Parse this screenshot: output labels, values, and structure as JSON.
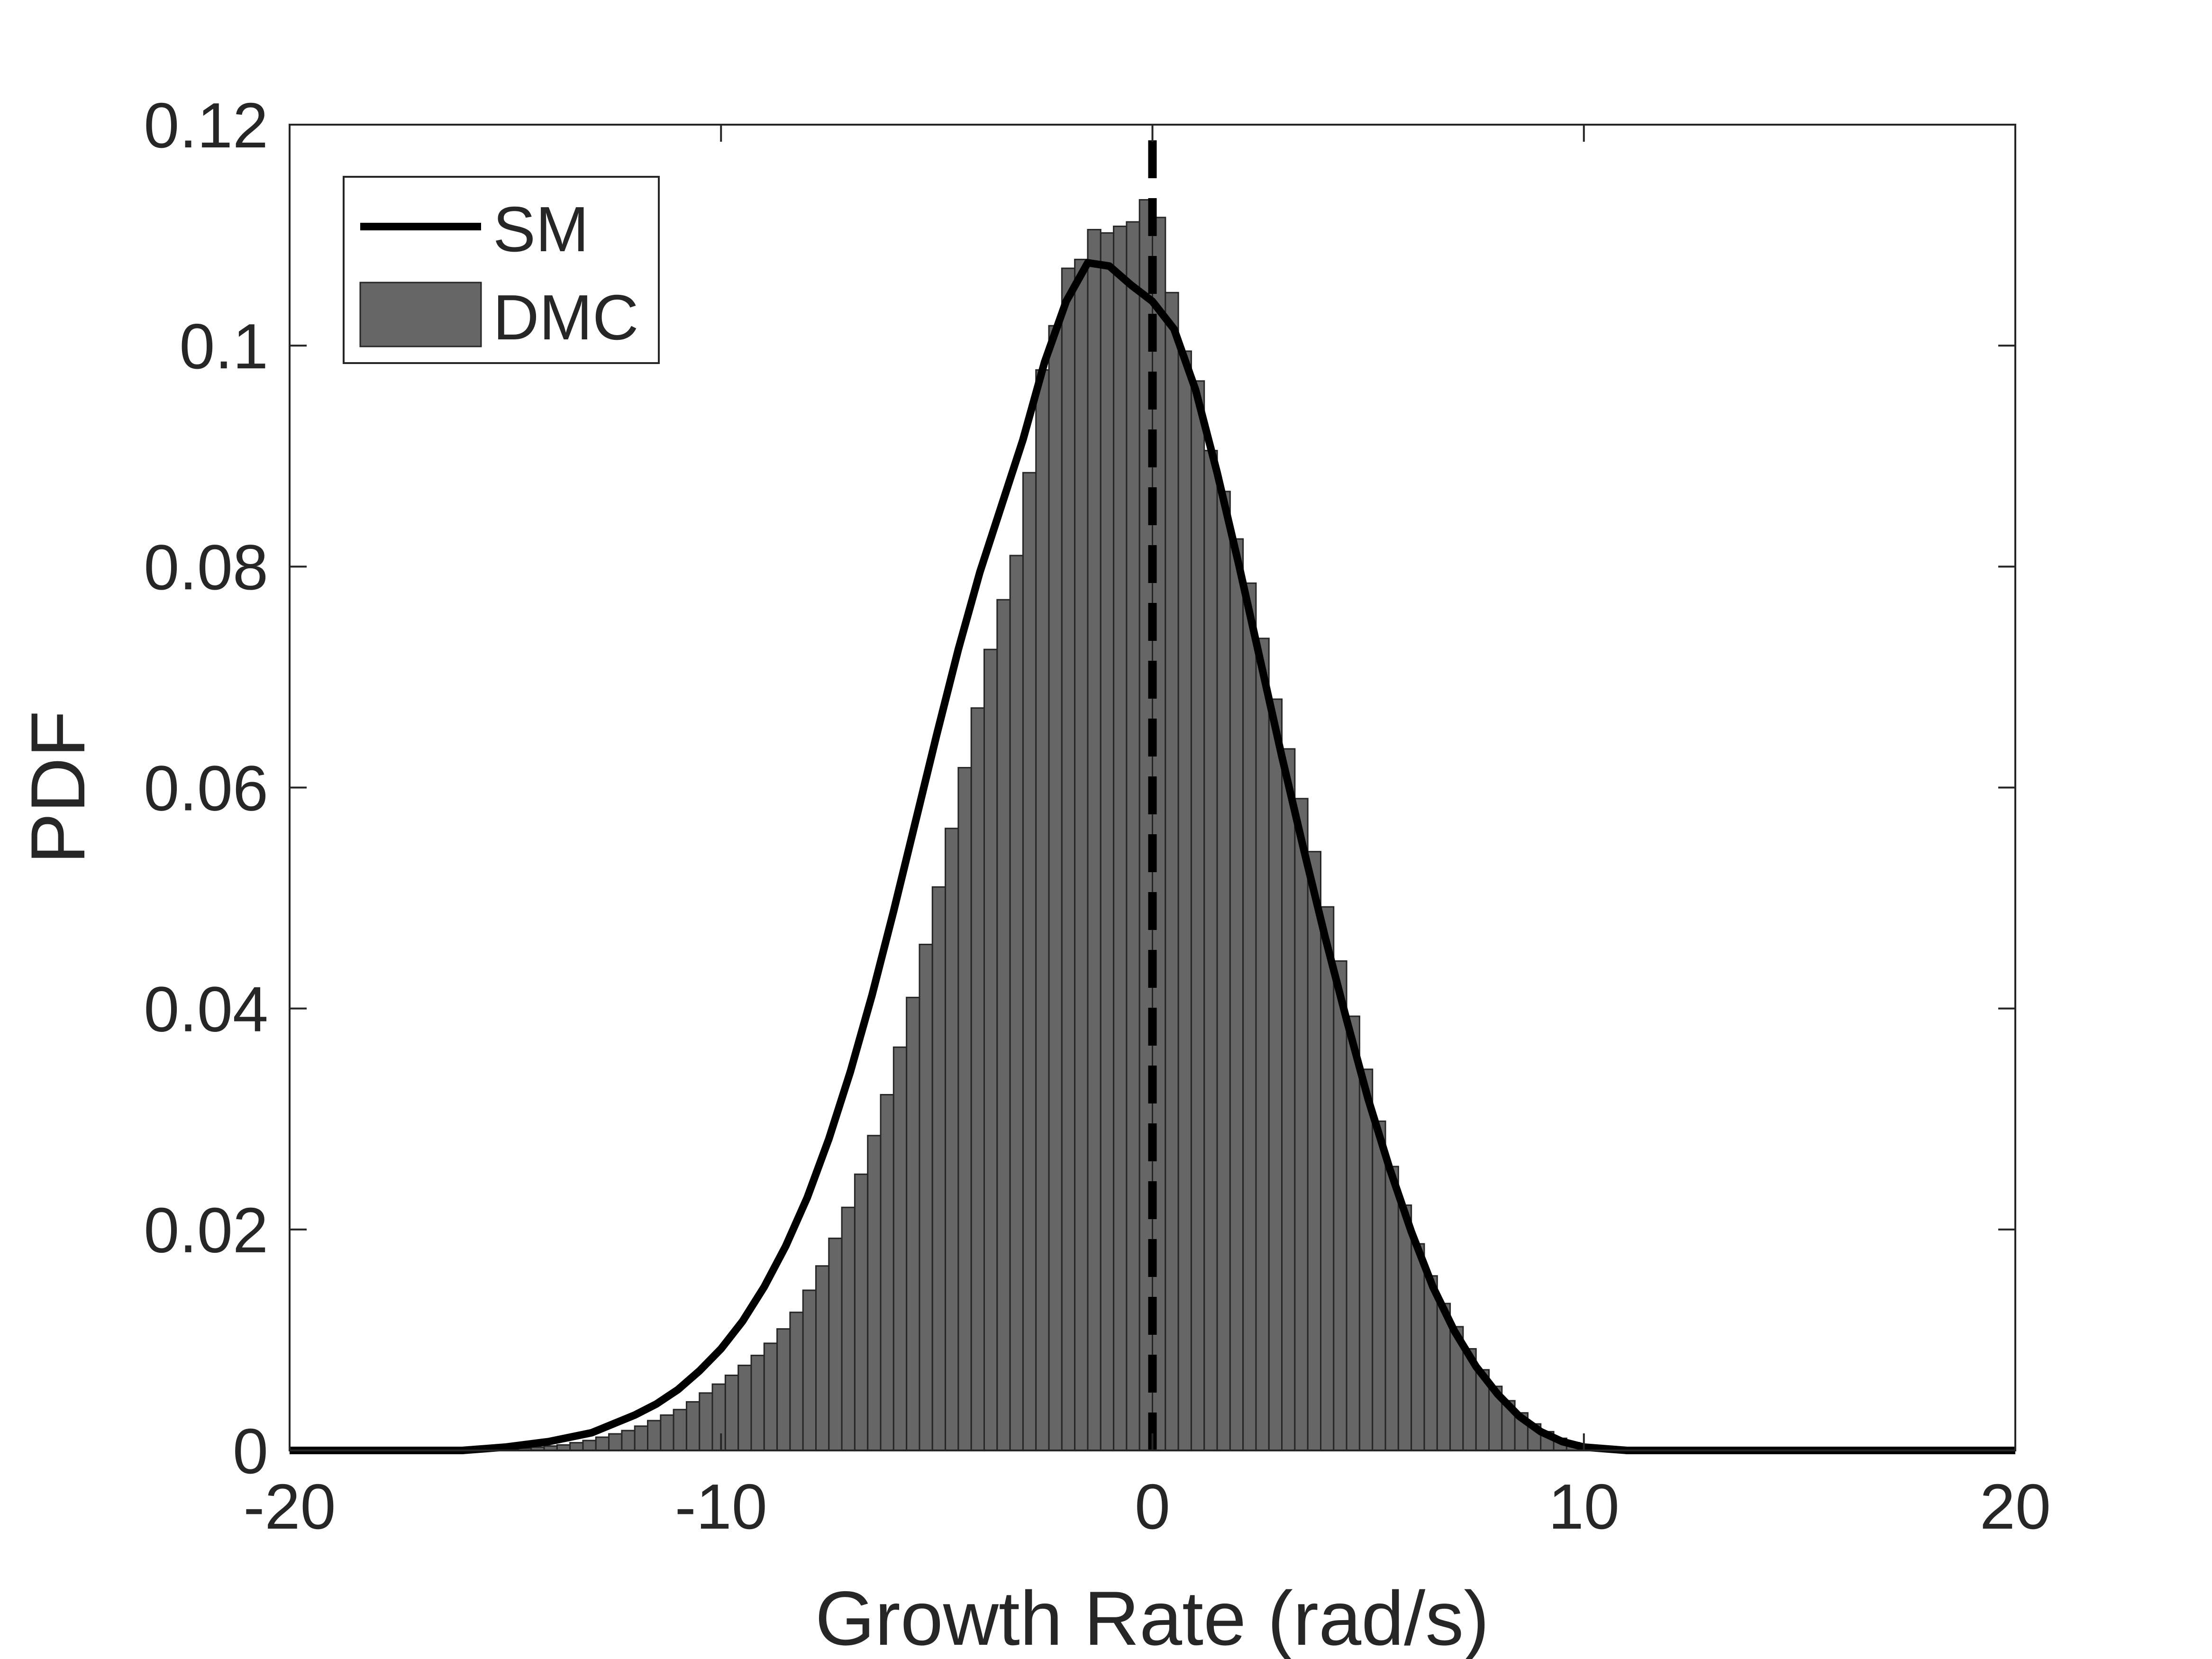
{
  "chart_data": {
    "type": "bar",
    "title": "",
    "xlabel": "Growth Rate (rad/s)",
    "ylabel": "PDF",
    "xlim": [
      -20,
      20
    ],
    "ylim": [
      0,
      0.12
    ],
    "xticks": [
      -20,
      -10,
      0,
      10,
      20
    ],
    "xtick_labels": [
      "-20",
      "-10",
      "0",
      "10",
      "20"
    ],
    "yticks": [
      0,
      0.02,
      0.04,
      0.06,
      0.08,
      0.1,
      0.12
    ],
    "ytick_labels": [
      "0",
      "0.02",
      "0.04",
      "0.06",
      "0.08",
      "0.1",
      "0.12"
    ],
    "grid": false,
    "legend_position": "top-left",
    "bar_color": "#666666",
    "line_color": "#000000",
    "histogram": {
      "name": "DMC",
      "bin_width": 0.3,
      "bin_centers": [
        -14.85,
        -14.55,
        -14.25,
        -13.95,
        -13.65,
        -13.35,
        -13.05,
        -12.75,
        -12.45,
        -12.15,
        -11.85,
        -11.55,
        -11.25,
        -10.95,
        -10.65,
        -10.35,
        -10.05,
        -9.75,
        -9.45,
        -9.15,
        -8.85,
        -8.55,
        -8.25,
        -7.95,
        -7.65,
        -7.35,
        -7.05,
        -6.75,
        -6.45,
        -6.15,
        -5.85,
        -5.55,
        -5.25,
        -4.95,
        -4.65,
        -4.35,
        -4.05,
        -3.75,
        -3.45,
        -3.15,
        -2.85,
        -2.55,
        -2.25,
        -1.95,
        -1.65,
        -1.35,
        -1.05,
        -0.75,
        -0.45,
        -0.15,
        0.15,
        0.45,
        0.75,
        1.05,
        1.35,
        1.65,
        1.95,
        2.25,
        2.55,
        2.85,
        3.15,
        3.45,
        3.75,
        4.05,
        4.35,
        4.65,
        4.95,
        5.25,
        5.55,
        5.85,
        6.15,
        6.45,
        6.75,
        7.05,
        7.35,
        7.65,
        7.95,
        8.25,
        8.55,
        8.85,
        9.15,
        9.45,
        9.75,
        10.05,
        10.35,
        10.65,
        10.95,
        11.25
      ],
      "values": [
        0.0001,
        0.0002,
        0.0003,
        0.0004,
        0.0005,
        0.0007,
        0.0009,
        0.0012,
        0.0015,
        0.0018,
        0.0022,
        0.0027,
        0.0032,
        0.0037,
        0.0044,
        0.0052,
        0.006,
        0.0068,
        0.0077,
        0.0086,
        0.0097,
        0.011,
        0.0125,
        0.0145,
        0.0167,
        0.0192,
        0.022,
        0.025,
        0.0285,
        0.0322,
        0.0365,
        0.041,
        0.0458,
        0.051,
        0.0563,
        0.0618,
        0.0672,
        0.0725,
        0.077,
        0.081,
        0.0885,
        0.0978,
        0.1018,
        0.107,
        0.1078,
        0.1105,
        0.1102,
        0.1108,
        0.1112,
        0.1132,
        0.1116,
        0.1048,
        0.0995,
        0.0968,
        0.0905,
        0.0868,
        0.0825,
        0.0785,
        0.0735,
        0.068,
        0.0635,
        0.059,
        0.0542,
        0.0492,
        0.0443,
        0.0393,
        0.0345,
        0.0298,
        0.0257,
        0.0222,
        0.0187,
        0.0158,
        0.0133,
        0.0112,
        0.0092,
        0.0073,
        0.0058,
        0.0045,
        0.0034,
        0.0024,
        0.0017,
        0.0011,
        0.0007,
        0.0004,
        0.0002,
        0.0001,
        5e-05,
        2e-05
      ]
    },
    "series": [
      {
        "name": "SM",
        "style": "solid",
        "x": [
          -20,
          -18,
          -16,
          -15,
          -14,
          -13,
          -12,
          -11.5,
          -11,
          -10.5,
          -10,
          -9.5,
          -9,
          -8.5,
          -8,
          -7.5,
          -7,
          -6.5,
          -6,
          -5.5,
          -5,
          -4.5,
          -4,
          -3.5,
          -3,
          -2.5,
          -2,
          -1.5,
          -1,
          -0.5,
          0,
          0.5,
          1,
          1.5,
          2,
          2.5,
          3,
          3.5,
          4,
          4.5,
          5,
          5.5,
          6,
          6.5,
          7,
          7.5,
          8,
          8.5,
          9,
          9.5,
          10,
          11,
          12,
          14,
          16,
          18,
          20
        ],
        "y": [
          0,
          0,
          0,
          0.0003,
          0.0008,
          0.0016,
          0.0032,
          0.0042,
          0.0055,
          0.0072,
          0.0092,
          0.0117,
          0.0148,
          0.0185,
          0.0229,
          0.0282,
          0.0343,
          0.0412,
          0.0488,
          0.0568,
          0.0648,
          0.0725,
          0.0795,
          0.0855,
          0.0915,
          0.0985,
          0.104,
          0.1075,
          0.1072,
          0.1055,
          0.104,
          0.1015,
          0.096,
          0.0885,
          0.0802,
          0.0715,
          0.0628,
          0.0545,
          0.0465,
          0.039,
          0.0318,
          0.0255,
          0.0198,
          0.0148,
          0.0108,
          0.0076,
          0.0051,
          0.0031,
          0.0017,
          0.0008,
          0.0003,
          0,
          0,
          0,
          0,
          0,
          0
        ]
      },
      {
        "name": "",
        "style": "dashed",
        "x": [
          0,
          0
        ],
        "y": [
          0,
          0.12
        ]
      }
    ],
    "legend": [
      {
        "label": "SM",
        "kind": "line"
      },
      {
        "label": "DMC",
        "kind": "patch"
      }
    ]
  }
}
